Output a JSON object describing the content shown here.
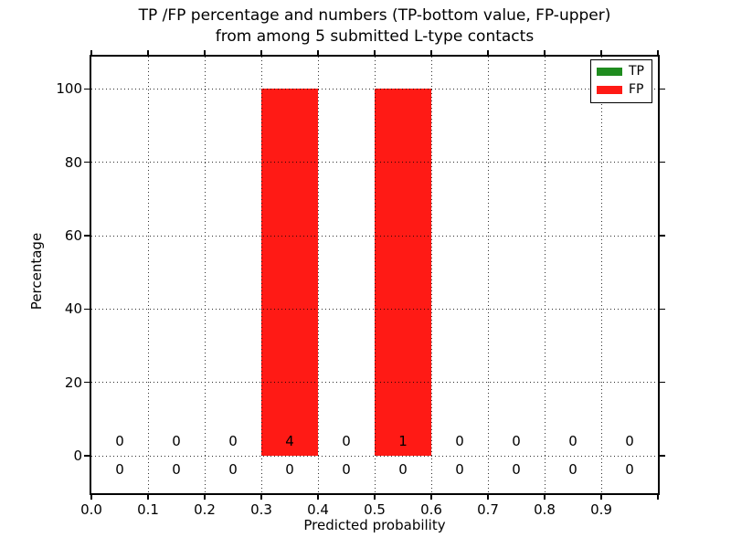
{
  "figure": {
    "title_line1": "TP /FP percentage and numbers (TP-bottom value, FP-upper)",
    "title_line2": "from among 5 submitted L-type contacts"
  },
  "axes": {
    "xlabel": "Predicted probability",
    "ylabel": "Percentage",
    "x_tick_labels": [
      "0.0",
      "0.1",
      "0.2",
      "0.3",
      "0.4",
      "0.5",
      "0.6",
      "0.7",
      "0.8",
      "0.9"
    ],
    "y_tick_labels": [
      "0",
      "20",
      "40",
      "60",
      "80",
      "100"
    ]
  },
  "legend": {
    "position": "upper-right",
    "items": [
      {
        "label": "TP",
        "color": "#1f8c1f"
      },
      {
        "label": "FP",
        "color": "#ff1a15"
      }
    ]
  },
  "colors": {
    "tp_green": "#1f8c1f",
    "fp_red": "#ff1a15",
    "axis_black": "#000000",
    "background": "#ffffff"
  },
  "chart_data": {
    "type": "bar",
    "title": "TP /FP percentage and numbers (TP-bottom value, FP-upper) from among 5 submitted L-type contacts",
    "xlabel": "Predicted probability",
    "ylabel": "Percentage",
    "total_submitted_contacts": 5,
    "xlim": [
      0.0,
      1.0
    ],
    "ylim": [
      -10.2,
      108.8
    ],
    "x_ticks": [
      0.0,
      0.1,
      0.2,
      0.3,
      0.4,
      0.5,
      0.6,
      0.7,
      0.8,
      0.9
    ],
    "y_ticks": [
      0,
      20,
      40,
      60,
      80,
      100
    ],
    "grid": "dotted",
    "grid_above_bars": true,
    "legend_position": "upper-right",
    "bin_edges": [
      0.0,
      0.1,
      0.2,
      0.3,
      0.4,
      0.5,
      0.6,
      0.7,
      0.8,
      0.9,
      1.0
    ],
    "bin_centers": [
      0.05,
      0.15,
      0.25,
      0.35,
      0.45,
      0.55,
      0.65,
      0.75,
      0.85,
      0.95
    ],
    "series": [
      {
        "name": "TP",
        "color": "#1f8c1f",
        "percent_values": [
          0,
          0,
          0,
          0,
          0,
          0,
          0,
          0,
          0,
          0
        ],
        "count_labels": [
          0,
          0,
          0,
          0,
          0,
          0,
          0,
          0,
          0,
          0
        ],
        "count_label_row": "below"
      },
      {
        "name": "FP",
        "color": "#ff1a15",
        "percent_values": [
          0,
          0,
          0,
          100,
          0,
          100,
          0,
          0,
          0,
          0
        ],
        "count_labels": [
          0,
          0,
          0,
          4,
          0,
          1,
          0,
          0,
          0,
          0
        ],
        "count_label_row": "above"
      }
    ]
  }
}
